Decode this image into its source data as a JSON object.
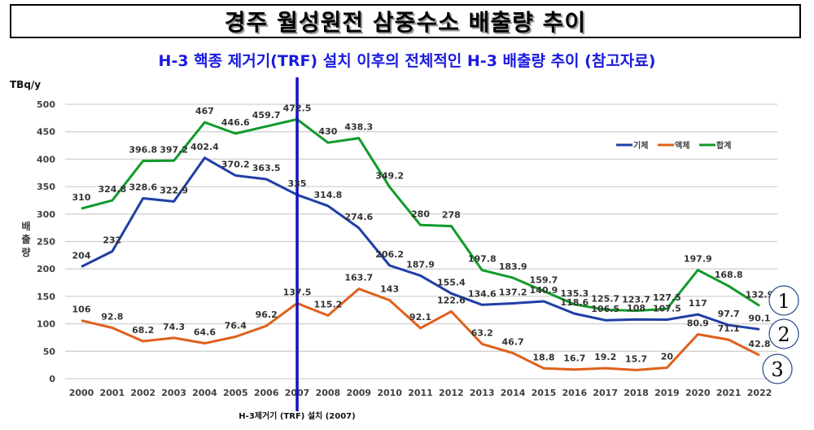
{
  "header": {
    "title": "경주 월성원전 삼중수소 배출량 추이"
  },
  "chart_data": {
    "type": "line",
    "title": "H-3 핵종 제거기(TRF) 설치 이후의 전체적인 H-3 배출량 추이 (참고자료)",
    "unit_label": "TBq/y",
    "ylabel": "배출량",
    "xlabel": "",
    "ylim": [
      0,
      500
    ],
    "yticks": [
      0,
      50,
      100,
      150,
      200,
      250,
      300,
      350,
      400,
      450,
      500
    ],
    "grid": true,
    "legend_position": "top-right",
    "categories": [
      "2000",
      "2001",
      "2002",
      "2003",
      "2004",
      "2005",
      "2006",
      "2007",
      "2008",
      "2009",
      "2010",
      "2011",
      "2012",
      "2013",
      "2014",
      "2015",
      "2016",
      "2017",
      "2018",
      "2019",
      "2020",
      "2021",
      "2022"
    ],
    "series": [
      {
        "name": "기체",
        "color": "#1f3fa6",
        "values": [
          204,
          232,
          328.6,
          322.9,
          402.4,
          370.2,
          363.5,
          335,
          314.8,
          274.6,
          206.2,
          187.9,
          155.4,
          134.6,
          137.2,
          140.9,
          118.6,
          106.5,
          108,
          107.5,
          117,
          97.7,
          90.1
        ]
      },
      {
        "name": "액체",
        "color": "#e0601c",
        "values": [
          106,
          92.8,
          68.2,
          74.3,
          64.6,
          76.4,
          96.2,
          137.5,
          115.2,
          163.7,
          143,
          92.1,
          122.6,
          63.2,
          46.7,
          18.8,
          16.7,
          19.2,
          15.7,
          20,
          80.9,
          71.1,
          42.8
        ]
      },
      {
        "name": "합계",
        "color": "#129a2a",
        "values": [
          310,
          324.8,
          396.8,
          397.2,
          467,
          446.6,
          459.7,
          472.5,
          430,
          438.3,
          349.2,
          280,
          278,
          197.8,
          183.9,
          159.7,
          135.3,
          125.7,
          123.7,
          127.5,
          197.9,
          168.8,
          132.9
        ]
      }
    ],
    "marker_line": {
      "x": "2007",
      "color": "#1010c8",
      "label": "H-3제거기 (TRF) 설치 (2007)"
    },
    "annotations": [
      {
        "text": "1",
        "series": "합계"
      },
      {
        "text": "2",
        "series": "기체"
      },
      {
        "text": "3",
        "series": "액체"
      }
    ]
  }
}
